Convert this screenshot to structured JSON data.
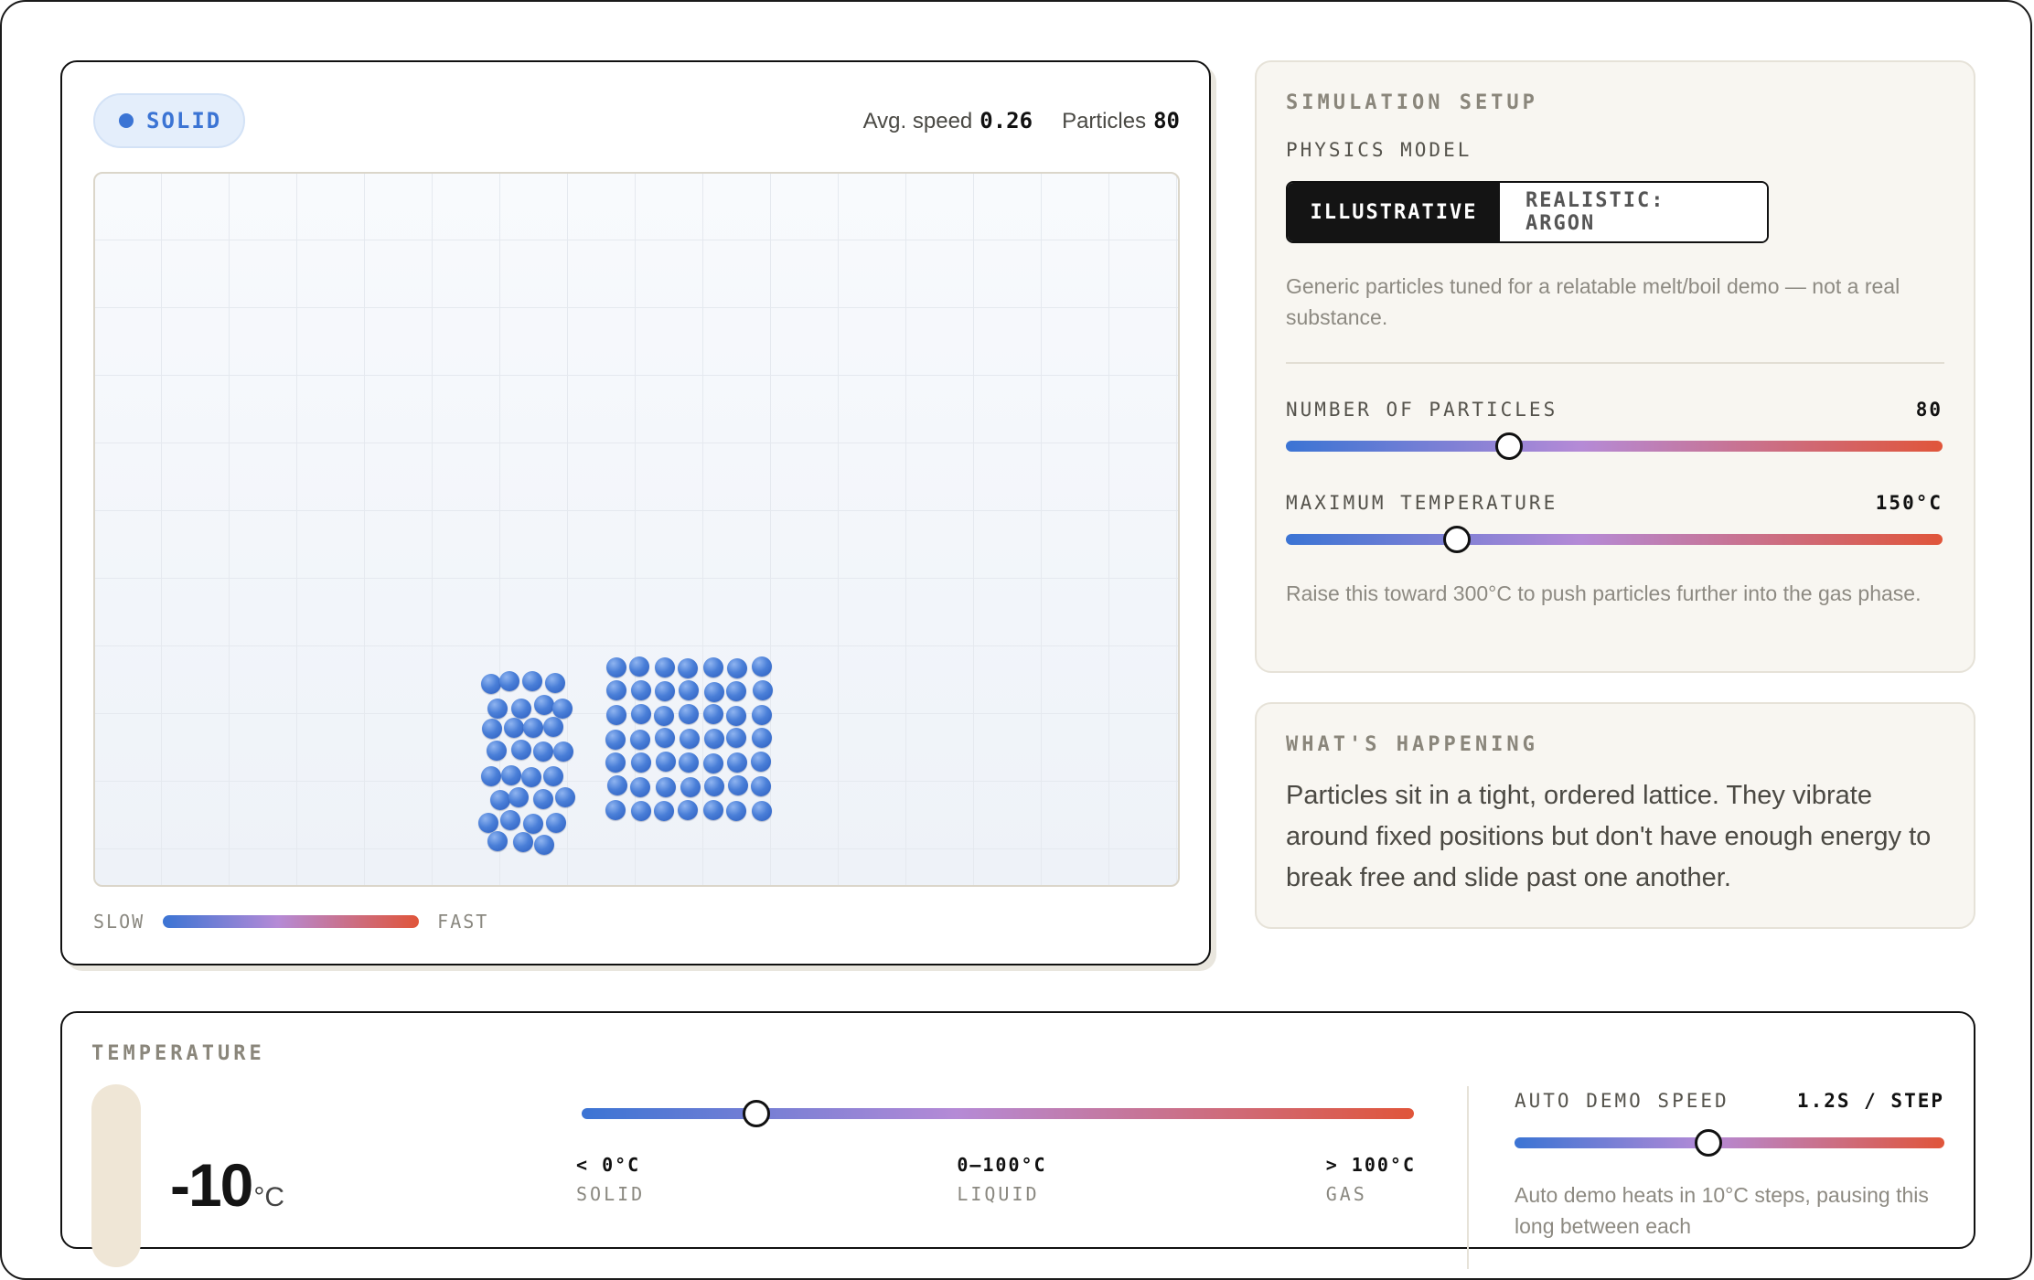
{
  "simulation": {
    "phase_badge": "SOLID",
    "avg_speed_label": "Avg. speed",
    "avg_speed_value": "0.26",
    "particles_label": "Particles",
    "particles_value": "80",
    "legend_slow": "SLOW",
    "legend_fast": "FAST"
  },
  "setup": {
    "title": "SIMULATION SETUP",
    "physics_label": "PHYSICS MODEL",
    "models": [
      "ILLUSTRATIVE",
      "REALISTIC: ARGON"
    ],
    "active_model": "ILLUSTRATIVE",
    "model_description": "Generic particles tuned for a relatable melt/boil demo — not a real substance.",
    "num_particles_label": "NUMBER OF PARTICLES",
    "num_particles_value": "80",
    "num_particles_level": 0.34,
    "max_temp_label": "MAXIMUM TEMPERATURE",
    "max_temp_value": "150°C",
    "max_temp_level": 0.26,
    "max_temp_hint": "Raise this toward 300°C to push particles further into the gas phase."
  },
  "whats_happening": {
    "title": "WHAT'S HAPPENING",
    "text": "Particles sit in a tight, ordered lattice. They vibrate around fixed positions but don't have enough energy to break free and slide past one another."
  },
  "temperature": {
    "title": "TEMPERATURE",
    "value": "-10",
    "unit": "°C",
    "slider_level": 0.21,
    "phases": [
      {
        "range": "< 0°C",
        "name": "SOLID"
      },
      {
        "range": "0–100°C",
        "name": "LIQUID"
      },
      {
        "range": "> 100°C",
        "name": "GAS"
      }
    ],
    "demo_speed_label": "AUTO DEMO SPEED",
    "demo_speed_value": "1.2S / STEP",
    "demo_speed_level": 0.45,
    "demo_hint": "Auto demo heats in 10°C steps, pausing this long between each"
  },
  "colors": {
    "solid_blue": "#3b74d4",
    "mid_purple": "#b58ad6",
    "hot_red": "#e0553a",
    "panel_bg": "#f8f6f1"
  }
}
